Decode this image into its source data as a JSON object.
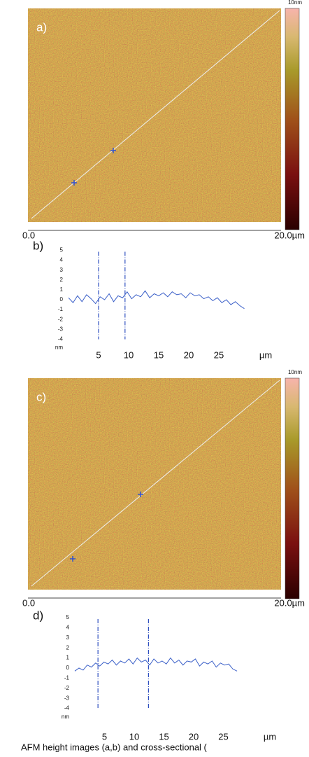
{
  "chart_data": [
    {
      "type": "afm-image",
      "label": "a)",
      "colorbar_label": "10nm",
      "x_start_label": "0.0",
      "x_end_label": "20.0µm"
    },
    {
      "type": "line",
      "label": "b)",
      "color": "#3a5fc8",
      "ylabel": "nm",
      "xlabel": "µm",
      "xlim": [
        0,
        30
      ],
      "ylim": [
        -5,
        5
      ],
      "yticks": [
        5,
        4,
        3,
        2,
        1,
        0,
        -1,
        -2,
        -3,
        -4
      ],
      "xticks": [
        5,
        10,
        15,
        20,
        25
      ],
      "cursors": [
        5.0,
        9.4
      ],
      "x": [
        0,
        0.75,
        1.5,
        2.25,
        3,
        3.75,
        4.5,
        5.25,
        6,
        6.75,
        7.5,
        8.25,
        9,
        9.75,
        10.5,
        11.25,
        12,
        12.75,
        13.5,
        14.25,
        15,
        15.75,
        16.5,
        17.25,
        18,
        18.75,
        19.5,
        20.25,
        21,
        21.75,
        22.5,
        23.25,
        24,
        24.75,
        25.5,
        26.25,
        27,
        27.75,
        28.5,
        29.25
      ],
      "values": [
        0.2,
        -0.3,
        0.4,
        -0.2,
        0.5,
        0.1,
        -0.4,
        0.3,
        0.0,
        0.6,
        -0.2,
        0.4,
        0.2,
        0.8,
        0.1,
        0.5,
        0.3,
        0.9,
        0.2,
        0.6,
        0.4,
        0.7,
        0.3,
        0.8,
        0.5,
        0.6,
        0.2,
        0.7,
        0.4,
        0.5,
        0.1,
        0.3,
        -0.1,
        0.2,
        -0.3,
        0.0,
        -0.5,
        -0.2,
        -0.6,
        -0.9
      ]
    },
    {
      "type": "afm-image",
      "label": "c)",
      "colorbar_label": "10nm",
      "x_start_label": "0.0",
      "x_end_label": "20.0µm"
    },
    {
      "type": "line",
      "label": "d)",
      "color": "#3a5fc8",
      "ylabel": "nm",
      "xlabel": "µm",
      "xlim": [
        0,
        30
      ],
      "ylim": [
        -5,
        5
      ],
      "yticks": [
        5,
        4,
        3,
        2,
        1,
        0,
        -1,
        -2,
        -3,
        -4
      ],
      "xticks": [
        5,
        10,
        15,
        20,
        25
      ],
      "cursors": [
        3.9,
        12.4
      ],
      "x": [
        0,
        0.7,
        1.4,
        2.1,
        2.8,
        3.5,
        4.2,
        4.9,
        5.6,
        6.3,
        7,
        7.7,
        8.4,
        9.1,
        9.8,
        10.5,
        11.2,
        11.9,
        12.6,
        13.3,
        14,
        14.7,
        15.4,
        16.1,
        16.8,
        17.5,
        18.2,
        18.9,
        19.6,
        20.3,
        21,
        21.7,
        22.4,
        23.1,
        23.8,
        24.5,
        25.2,
        25.9,
        26.6,
        27.3
      ],
      "values": [
        -0.3,
        0.0,
        -0.2,
        0.3,
        0.1,
        0.5,
        0.2,
        0.6,
        0.4,
        0.8,
        0.3,
        0.7,
        0.5,
        0.9,
        0.4,
        1.0,
        0.6,
        0.8,
        0.3,
        0.9,
        0.5,
        0.7,
        0.4,
        1.0,
        0.5,
        0.8,
        0.3,
        0.7,
        0.6,
        0.9,
        0.2,
        0.6,
        0.4,
        0.7,
        0.1,
        0.5,
        0.3,
        0.4,
        -0.1,
        -0.3
      ]
    }
  ],
  "caption": "AFM height images (a,b) and cross-sectional ("
}
